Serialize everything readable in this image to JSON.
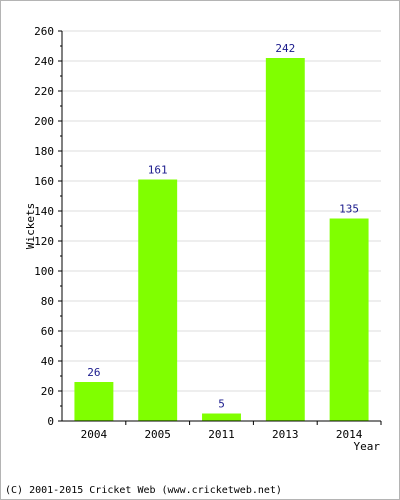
{
  "chart_data": {
    "type": "bar",
    "categories": [
      "2004",
      "2005",
      "2011",
      "2013",
      "2014"
    ],
    "values": [
      26,
      161,
      5,
      242,
      135
    ],
    "data_labels": [
      "26",
      "161",
      "5",
      "242",
      "135"
    ],
    "title": "",
    "xlabel": "Year",
    "ylabel": "Wickets",
    "ylim": [
      0,
      260
    ],
    "yticks": [
      "0",
      "20",
      "40",
      "60",
      "80",
      "100",
      "120",
      "140",
      "160",
      "180",
      "200",
      "220",
      "240",
      "260"
    ],
    "grid": true,
    "legend": "none",
    "bar_color": "#80ff00"
  },
  "footer": {
    "copyright": "(C) 2001-2015 Cricket Web (www.cricketweb.net)"
  }
}
